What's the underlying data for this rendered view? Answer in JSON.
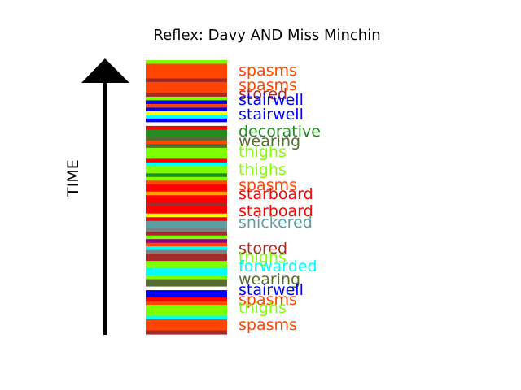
{
  "chart_data": {
    "type": "table",
    "title": "Reflex: Davy AND Miss Minchin",
    "ylabel": "TIME",
    "stripes": [
      {
        "color": "#7fff00"
      },
      {
        "color": "#ff4500"
      },
      {
        "color": "#ff4500"
      },
      {
        "color": "#ff4500"
      },
      {
        "color": "#ff4500"
      },
      {
        "color": "#a52a2a"
      },
      {
        "color": "#ff4500"
      },
      {
        "color": "#ff4500"
      },
      {
        "color": "#ff4500"
      },
      {
        "color": "#a52a2a"
      },
      {
        "color": "#7fff00"
      },
      {
        "color": "#0000ff"
      },
      {
        "color": "#ff4500"
      },
      {
        "color": "#0000ff"
      },
      {
        "color": "#ffff00"
      },
      {
        "color": "#00ffff"
      },
      {
        "color": "#0000ff"
      },
      {
        "color": "#ffffff"
      },
      {
        "color": "#ff0000"
      },
      {
        "color": "#228b22"
      },
      {
        "color": "#228b22"
      },
      {
        "color": "#556b2f"
      },
      {
        "color": "#ff4500"
      },
      {
        "color": "#556b2f"
      },
      {
        "color": "#7fff00"
      },
      {
        "color": "#7fff00"
      },
      {
        "color": "#7fff00"
      },
      {
        "color": "#ff0000"
      },
      {
        "color": "#00ffff"
      },
      {
        "color": "#7fff00"
      },
      {
        "color": "#7fff00"
      },
      {
        "color": "#228b22"
      },
      {
        "color": "#7fff00"
      },
      {
        "color": "#ff4500"
      },
      {
        "color": "#ff0000"
      },
      {
        "color": "#ff0000"
      },
      {
        "color": "#ffa500"
      },
      {
        "color": "#ff0000"
      },
      {
        "color": "#ff0000"
      },
      {
        "color": "#a52a2a"
      },
      {
        "color": "#ff0000"
      },
      {
        "color": "#ff0000"
      },
      {
        "color": "#ffff00"
      },
      {
        "color": "#ff0000"
      },
      {
        "color": "#5f9ea0"
      },
      {
        "color": "#5f9ea0"
      },
      {
        "color": "#808080"
      },
      {
        "color": "#a52a2a"
      },
      {
        "color": "#7fff00"
      },
      {
        "color": "#8b008b"
      },
      {
        "color": "#ff4500"
      },
      {
        "color": "#00ffff"
      },
      {
        "color": "#808080"
      },
      {
        "color": "#a52a2a"
      },
      {
        "color": "#a52a2a"
      },
      {
        "color": "#7fff00"
      },
      {
        "color": "#7fff00"
      },
      {
        "color": "#00ffff"
      },
      {
        "color": "#00ffff"
      },
      {
        "color": "#7fff00"
      },
      {
        "color": "#556b2f"
      },
      {
        "color": "#556b2f"
      },
      {
        "color": "#ffffff"
      },
      {
        "color": "#0000ff"
      },
      {
        "color": "#0000ff"
      },
      {
        "color": "#ff0000"
      },
      {
        "color": "#ff4500"
      },
      {
        "color": "#7fff00"
      },
      {
        "color": "#7fff00"
      },
      {
        "color": "#7fff00"
      },
      {
        "color": "#00ffff"
      },
      {
        "color": "#ff4500"
      },
      {
        "color": "#ff4500"
      },
      {
        "color": "#ff4500"
      },
      {
        "color": "#a52a2a"
      }
    ],
    "labels": [
      {
        "text": "spasms",
        "color": "#ff4500"
      },
      {
        "text": "spasms",
        "color": "#ff4500"
      },
      {
        "text": "stored",
        "color": "#a52a2a"
      },
      {
        "text": "stairwell",
        "color": "#0000ff"
      },
      {
        "text": "stairwell",
        "color": "#0000ff"
      },
      {
        "text": "decorative",
        "color": "#228b22"
      },
      {
        "text": "wearing",
        "color": "#556b2f"
      },
      {
        "text": "thighs",
        "color": "#7fff00"
      },
      {
        "text": "thighs",
        "color": "#7fff00"
      },
      {
        "text": "spasms",
        "color": "#ff4500"
      },
      {
        "text": "starboard",
        "color": "#ff0000"
      },
      {
        "text": "starboard",
        "color": "#ff0000"
      },
      {
        "text": "snickered",
        "color": "#5f9ea0"
      },
      {
        "text": "stored",
        "color": "#a52a2a"
      },
      {
        "text": "thighs",
        "color": "#7fff00"
      },
      {
        "text": "forwarded",
        "color": "#00ffff"
      },
      {
        "text": "wearing",
        "color": "#556b2f"
      },
      {
        "text": "stairwell",
        "color": "#0000ff"
      },
      {
        "text": "spasms",
        "color": "#ff4500"
      },
      {
        "text": "thighs",
        "color": "#7fff00"
      },
      {
        "text": "spasms",
        "color": "#ff4500"
      }
    ]
  }
}
